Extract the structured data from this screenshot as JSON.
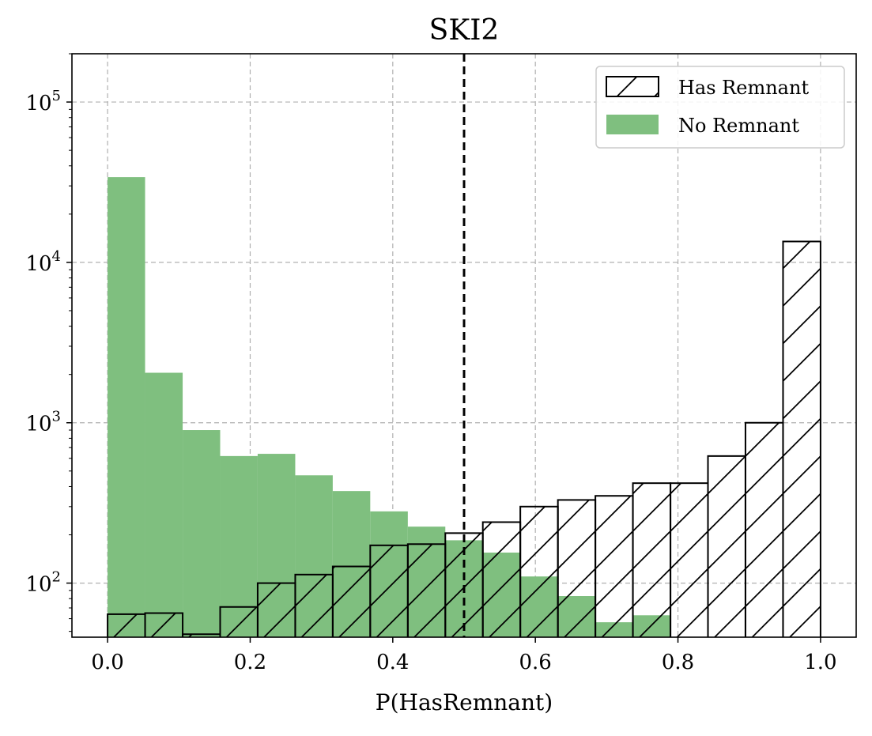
{
  "chart_data": {
    "type": "bar",
    "title": "SKI2",
    "xlabel": "P(HasRemnant)",
    "ylabel": "",
    "xlim": [
      -0.05,
      1.05
    ],
    "ylim": [
      46,
      200000
    ],
    "yscale": "log",
    "grid": true,
    "legend_position": "top-right",
    "xticks": [
      "0.0",
      "0.2",
      "0.4",
      "0.6",
      "0.8",
      "1.0"
    ],
    "xtick_values": [
      0,
      0.2,
      0.4,
      0.6,
      0.8,
      1.0
    ],
    "yticks": [
      {
        "base": "10",
        "exp": "2",
        "value": 100
      },
      {
        "base": "10",
        "exp": "3",
        "value": 1000
      },
      {
        "base": "10",
        "exp": "4",
        "value": 10000
      },
      {
        "base": "10",
        "exp": "5",
        "value": 100000
      }
    ],
    "bin_edges": [
      0.0,
      0.0526,
      0.1053,
      0.1579,
      0.2105,
      0.2632,
      0.3158,
      0.3684,
      0.4211,
      0.4737,
      0.5263,
      0.5789,
      0.6316,
      0.6842,
      0.7368,
      0.7895,
      0.8421,
      0.8947,
      0.9474,
      1.0
    ],
    "series": [
      {
        "name": "No Remnant",
        "color": "#7fbf7f",
        "style": "filled",
        "values": [
          34000,
          2050,
          900,
          620,
          640,
          470,
          375,
          280,
          225,
          185,
          155,
          110,
          83,
          57,
          63,
          0,
          0,
          0,
          0
        ]
      },
      {
        "name": "Has Remnant",
        "color": "#000000",
        "style": "hatched-outline",
        "values": [
          64,
          65,
          48,
          71,
          100,
          113,
          127,
          172,
          175,
          205,
          240,
          300,
          330,
          350,
          420,
          420,
          620,
          1000,
          13500
        ]
      }
    ],
    "threshold_line": {
      "x": 0.5,
      "style": "dashed",
      "color": "#000000"
    }
  }
}
